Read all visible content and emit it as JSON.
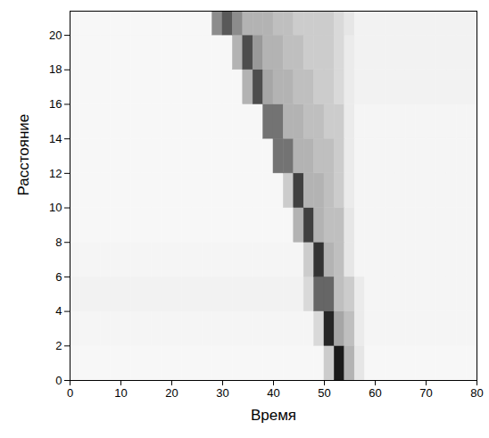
{
  "chart_data": {
    "type": "heatmap",
    "xlabel": "Время",
    "ylabel": "Расстояние",
    "xlim": [
      0,
      80
    ],
    "ylim": [
      0,
      21.4
    ],
    "xticks": [
      0,
      10,
      20,
      30,
      40,
      50,
      60,
      70,
      80
    ],
    "yticks": [
      0,
      2,
      4,
      6,
      8,
      10,
      12,
      14,
      16,
      18,
      20
    ],
    "grid": false,
    "color": "#000000",
    "zlim": [
      0,
      1
    ],
    "xbins": [
      0,
      2,
      4,
      6,
      8,
      10,
      12,
      14,
      16,
      18,
      20,
      22,
      24,
      26,
      28,
      30,
      32,
      34,
      36,
      38,
      40,
      42,
      44,
      46,
      48,
      50,
      52,
      54,
      56,
      58,
      60,
      62,
      64,
      66,
      68,
      70,
      72,
      74,
      76,
      78,
      80
    ],
    "ybins": [
      0,
      2,
      4,
      6,
      8,
      10,
      12,
      14,
      16,
      18,
      20,
      22
    ],
    "values": [
      [
        0.03,
        0.03,
        0.03,
        0.03,
        0.03,
        0.03,
        0.03,
        0.03,
        0.03,
        0.03,
        0.03,
        0.03,
        0.03,
        0.03,
        0.03,
        0.03,
        0.03,
        0.03,
        0.03,
        0.03,
        0.03,
        0.03,
        0.03,
        0.03,
        0.03,
        0.2,
        0.9,
        0.3,
        0.1,
        0.03,
        0.03,
        0.03,
        0.03,
        0.03,
        0.03,
        0.03,
        0.03,
        0.03,
        0.03,
        0.03
      ],
      [
        0.04,
        0.04,
        0.04,
        0.04,
        0.04,
        0.04,
        0.04,
        0.04,
        0.04,
        0.04,
        0.04,
        0.04,
        0.04,
        0.04,
        0.04,
        0.04,
        0.04,
        0.04,
        0.04,
        0.04,
        0.04,
        0.04,
        0.04,
        0.04,
        0.15,
        0.85,
        0.35,
        0.25,
        0.08,
        0.04,
        0.04,
        0.04,
        0.04,
        0.04,
        0.04,
        0.04,
        0.04,
        0.04,
        0.04,
        0.04
      ],
      [
        0.05,
        0.05,
        0.05,
        0.05,
        0.05,
        0.05,
        0.05,
        0.05,
        0.05,
        0.05,
        0.05,
        0.05,
        0.05,
        0.05,
        0.05,
        0.05,
        0.05,
        0.05,
        0.05,
        0.05,
        0.05,
        0.05,
        0.05,
        0.15,
        0.6,
        0.6,
        0.25,
        0.2,
        0.08,
        0.04,
        0.04,
        0.04,
        0.04,
        0.04,
        0.04,
        0.04,
        0.04,
        0.04,
        0.04,
        0.04
      ],
      [
        0.04,
        0.04,
        0.04,
        0.04,
        0.04,
        0.04,
        0.04,
        0.04,
        0.04,
        0.04,
        0.04,
        0.04,
        0.04,
        0.04,
        0.04,
        0.04,
        0.04,
        0.04,
        0.04,
        0.04,
        0.04,
        0.04,
        0.04,
        0.2,
        0.8,
        0.3,
        0.25,
        0.1,
        0.04,
        0.04,
        0.04,
        0.04,
        0.04,
        0.04,
        0.04,
        0.04,
        0.04,
        0.04,
        0.04,
        0.04
      ],
      [
        0.03,
        0.03,
        0.03,
        0.03,
        0.03,
        0.03,
        0.03,
        0.03,
        0.03,
        0.03,
        0.03,
        0.03,
        0.03,
        0.03,
        0.03,
        0.03,
        0.03,
        0.03,
        0.03,
        0.03,
        0.03,
        0.03,
        0.3,
        0.75,
        0.3,
        0.25,
        0.25,
        0.1,
        0.04,
        0.04,
        0.04,
        0.04,
        0.04,
        0.04,
        0.04,
        0.04,
        0.04,
        0.04,
        0.04,
        0.04
      ],
      [
        0.03,
        0.03,
        0.03,
        0.03,
        0.03,
        0.03,
        0.03,
        0.03,
        0.03,
        0.03,
        0.03,
        0.03,
        0.03,
        0.03,
        0.03,
        0.03,
        0.03,
        0.03,
        0.03,
        0.03,
        0.03,
        0.2,
        0.75,
        0.3,
        0.3,
        0.25,
        0.2,
        0.08,
        0.04,
        0.04,
        0.04,
        0.04,
        0.04,
        0.04,
        0.04,
        0.04,
        0.04,
        0.04,
        0.04,
        0.04
      ],
      [
        0.03,
        0.03,
        0.03,
        0.03,
        0.03,
        0.03,
        0.03,
        0.03,
        0.03,
        0.03,
        0.03,
        0.03,
        0.03,
        0.03,
        0.03,
        0.03,
        0.03,
        0.03,
        0.03,
        0.03,
        0.55,
        0.55,
        0.3,
        0.3,
        0.25,
        0.25,
        0.2,
        0.08,
        0.04,
        0.04,
        0.04,
        0.04,
        0.04,
        0.04,
        0.04,
        0.04,
        0.04,
        0.04,
        0.04,
        0.04
      ],
      [
        0.03,
        0.03,
        0.03,
        0.03,
        0.03,
        0.03,
        0.03,
        0.03,
        0.03,
        0.03,
        0.03,
        0.03,
        0.03,
        0.03,
        0.03,
        0.03,
        0.03,
        0.03,
        0.03,
        0.55,
        0.55,
        0.3,
        0.3,
        0.25,
        0.25,
        0.2,
        0.2,
        0.08,
        0.04,
        0.04,
        0.04,
        0.04,
        0.04,
        0.04,
        0.04,
        0.04,
        0.04,
        0.04,
        0.04,
        0.04
      ],
      [
        0.03,
        0.03,
        0.03,
        0.03,
        0.03,
        0.03,
        0.03,
        0.03,
        0.03,
        0.03,
        0.03,
        0.03,
        0.03,
        0.03,
        0.03,
        0.03,
        0.03,
        0.3,
        0.7,
        0.35,
        0.3,
        0.3,
        0.25,
        0.25,
        0.2,
        0.2,
        0.15,
        0.08,
        0.05,
        0.05,
        0.05,
        0.05,
        0.05,
        0.05,
        0.05,
        0.05,
        0.05,
        0.05,
        0.05,
        0.05
      ],
      [
        0.03,
        0.03,
        0.03,
        0.03,
        0.03,
        0.03,
        0.03,
        0.03,
        0.03,
        0.03,
        0.03,
        0.03,
        0.03,
        0.03,
        0.03,
        0.03,
        0.3,
        0.7,
        0.4,
        0.3,
        0.3,
        0.25,
        0.25,
        0.2,
        0.2,
        0.2,
        0.15,
        0.08,
        0.05,
        0.05,
        0.05,
        0.05,
        0.05,
        0.05,
        0.05,
        0.05,
        0.05,
        0.05,
        0.05,
        0.05
      ],
      [
        0.03,
        0.03,
        0.03,
        0.03,
        0.03,
        0.03,
        0.03,
        0.03,
        0.03,
        0.03,
        0.03,
        0.03,
        0.03,
        0.03,
        0.45,
        0.65,
        0.45,
        0.3,
        0.3,
        0.3,
        0.25,
        0.25,
        0.2,
        0.2,
        0.2,
        0.2,
        0.15,
        0.1,
        0.05,
        0.05,
        0.05,
        0.05,
        0.05,
        0.05,
        0.05,
        0.05,
        0.05,
        0.05,
        0.05,
        0.05
      ]
    ]
  }
}
